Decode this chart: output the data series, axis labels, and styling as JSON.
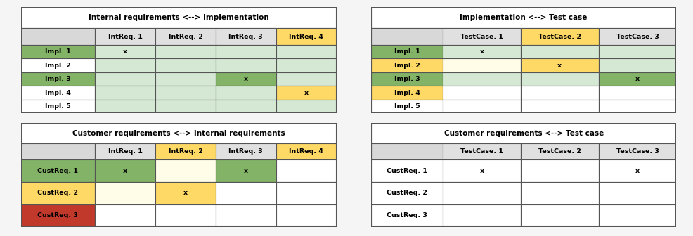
{
  "tables": [
    {
      "title": "Internal requirements <--> Implementation",
      "col_headers": [
        "",
        "IntReq. 1",
        "IntReq. 2",
        "IntReq. 3",
        "IntReq. 4"
      ],
      "row_headers": [
        "Impl. 1",
        "Impl. 2",
        "Impl. 3",
        "Impl. 4",
        "Impl. 5"
      ],
      "cells": [
        [
          "x",
          "",
          "",
          ""
        ],
        [
          "",
          "",
          "",
          ""
        ],
        [
          "",
          "",
          "x",
          ""
        ],
        [
          "",
          "",
          "",
          "x"
        ],
        [
          "",
          "",
          "",
          ""
        ]
      ],
      "row_header_colors": [
        "#82b366",
        "#ffffff",
        "#82b366",
        "#ffffff",
        "#ffffff"
      ],
      "col_header_colors": [
        "#e0e0e0",
        "#e0e0e0",
        "#e0e0e0",
        "#ffd966"
      ],
      "cell_colors": [
        [
          "#d5e8d4",
          "#d5e8d4",
          "#d5e8d4",
          "#d5e8d4"
        ],
        [
          "#d5e8d4",
          "#d5e8d4",
          "#d5e8d4",
          "#d5e8d4"
        ],
        [
          "#d5e8d4",
          "#d5e8d4",
          "#82b366",
          "#d5e8d4"
        ],
        [
          "#d5e8d4",
          "#d5e8d4",
          "#d5e8d4",
          "#ffd966"
        ],
        [
          "#d5e8d4",
          "#d5e8d4",
          "#d5e8d4",
          "#d5e8d4"
        ]
      ],
      "grid": [
        0.03,
        0.52,
        0.455,
        0.45
      ]
    },
    {
      "title": "Implementation <--> Test case",
      "col_headers": [
        "",
        "TestCase. 1",
        "TestCase. 2",
        "TestCase. 3"
      ],
      "row_headers": [
        "Impl. 1",
        "Impl. 2",
        "Impl. 3",
        "Impl. 4",
        "Impl. 5"
      ],
      "cells": [
        [
          "x",
          "",
          ""
        ],
        [
          "",
          "x",
          ""
        ],
        [
          "",
          "",
          "x"
        ],
        [
          "",
          "",
          ""
        ],
        [
          "",
          "",
          ""
        ]
      ],
      "row_header_colors": [
        "#82b366",
        "#ffd966",
        "#82b366",
        "#ffd966",
        "#ffffff"
      ],
      "col_header_colors": [
        "#e0e0e0",
        "#ffd966",
        "#e0e0e0"
      ],
      "cell_colors": [
        [
          "#d5e8d4",
          "#d5e8d4",
          "#d5e8d4"
        ],
        [
          "#fffde7",
          "#ffd966",
          "#d5e8d4"
        ],
        [
          "#d5e8d4",
          "#d5e8d4",
          "#82b366"
        ],
        [
          "#ffffff",
          "#ffffff",
          "#ffffff"
        ],
        [
          "#ffffff",
          "#ffffff",
          "#ffffff"
        ]
      ],
      "grid": [
        0.535,
        0.52,
        0.44,
        0.45
      ]
    },
    {
      "title": "Customer requirements <--> Internal requirements",
      "col_headers": [
        "",
        "IntReq. 1",
        "IntReq. 2",
        "IntReq. 3",
        "IntReq. 4"
      ],
      "row_headers": [
        "CustReq. 1",
        "CustReq. 2",
        "CustReq. 3"
      ],
      "cells": [
        [
          "x",
          "",
          "x",
          ""
        ],
        [
          "",
          "x",
          "",
          ""
        ],
        [
          "",
          "",
          "",
          ""
        ]
      ],
      "row_header_colors": [
        "#82b366",
        "#ffd966",
        "#c0392b"
      ],
      "col_header_colors": [
        "#e0e0e0",
        "#ffd966",
        "#e0e0e0",
        "#ffd966"
      ],
      "cell_colors": [
        [
          "#82b366",
          "#fffde7",
          "#82b366",
          "#ffffff"
        ],
        [
          "#fffde7",
          "#ffd966",
          "#ffffff",
          "#ffffff"
        ],
        [
          "#ffffff",
          "#ffffff",
          "#ffffff",
          "#ffffff"
        ]
      ],
      "grid": [
        0.03,
        0.04,
        0.455,
        0.44
      ]
    },
    {
      "title": "Customer requirements <--> Test case",
      "col_headers": [
        "",
        "TestCase. 1",
        "TestCase. 2",
        "TestCase. 3"
      ],
      "row_headers": [
        "CustReq. 1",
        "CustReq. 2",
        "CustReq. 3"
      ],
      "cells": [
        [
          "x",
          "",
          "x"
        ],
        [
          "",
          "",
          ""
        ],
        [
          "",
          "",
          ""
        ]
      ],
      "row_header_colors": [
        "#ffffff",
        "#ffffff",
        "#ffffff"
      ],
      "col_header_colors": [
        "#e0e0e0",
        "#e0e0e0",
        "#e0e0e0"
      ],
      "cell_colors": [
        [
          "#ffffff",
          "#ffffff",
          "#ffffff"
        ],
        [
          "#ffffff",
          "#ffffff",
          "#ffffff"
        ],
        [
          "#ffffff",
          "#ffffff",
          "#ffffff"
        ]
      ],
      "grid": [
        0.535,
        0.04,
        0.44,
        0.44
      ]
    }
  ],
  "bg_color": "#f5f5f5",
  "title_fontsize": 7.5,
  "cell_fontsize": 6.8
}
